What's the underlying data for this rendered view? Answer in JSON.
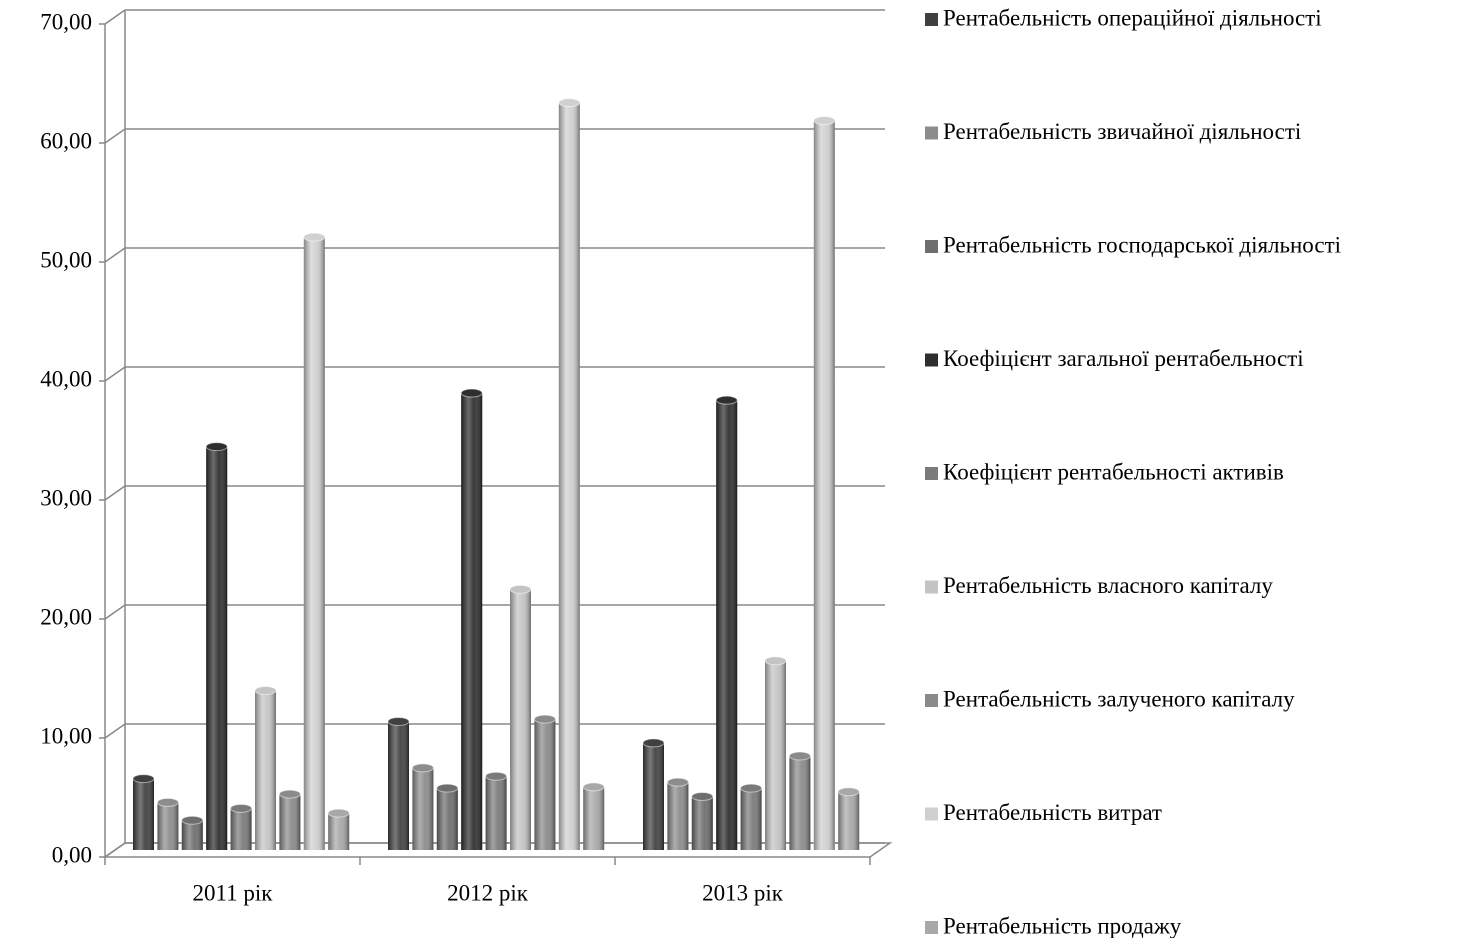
{
  "chart_data": {
    "type": "bar",
    "categories": [
      "2011 рік",
      "2012 рік",
      "2013 рік"
    ],
    "series": [
      {
        "name": "Рентабельність операційної діяльності",
        "color": "#404040",
        "values": [
          6.0,
          10.8,
          9.0
        ]
      },
      {
        "name": "Рентабельність звичайної діяльності",
        "color": "#8c8c8c",
        "values": [
          4.0,
          6.9,
          5.7
        ]
      },
      {
        "name": "Рентабельність господарської діяльності",
        "color": "#6e6e6e",
        "values": [
          2.5,
          5.2,
          4.5
        ]
      },
      {
        "name": "Коефіцієнт загальної рентабельності",
        "color": "#2e2e2e",
        "values": [
          33.9,
          38.4,
          37.8
        ]
      },
      {
        "name": "Коефіцієнт рентабельності активів",
        "color": "#7a7a7a",
        "values": [
          3.5,
          6.2,
          5.2
        ]
      },
      {
        "name": "Рентабельність власного капіталу",
        "color": "#c4c4c4",
        "values": [
          13.4,
          21.9,
          15.9
        ]
      },
      {
        "name": "Рентабельність залученого капіталу",
        "color": "#8a8a8a",
        "values": [
          4.7,
          11.0,
          7.9
        ]
      },
      {
        "name": "Рентабельність витрат",
        "color": "#d0d0d0",
        "values": [
          51.5,
          62.8,
          61.3
        ]
      },
      {
        "name": "Рентабельність продажу",
        "color": "#a8a8a8",
        "values": [
          3.1,
          5.3,
          4.9
        ]
      }
    ],
    "ylim": [
      0,
      70
    ],
    "yticks": [
      {
        "value": 0,
        "label": "0,00"
      },
      {
        "value": 10,
        "label": "10,00"
      },
      {
        "value": 20,
        "label": "20,00"
      },
      {
        "value": 30,
        "label": "30,00"
      },
      {
        "value": 40,
        "label": "40,00"
      },
      {
        "value": 50,
        "label": "50,00"
      },
      {
        "value": 60,
        "label": "60,00"
      },
      {
        "value": 70,
        "label": "70,00"
      }
    ],
    "grid": true,
    "legend": "right"
  }
}
